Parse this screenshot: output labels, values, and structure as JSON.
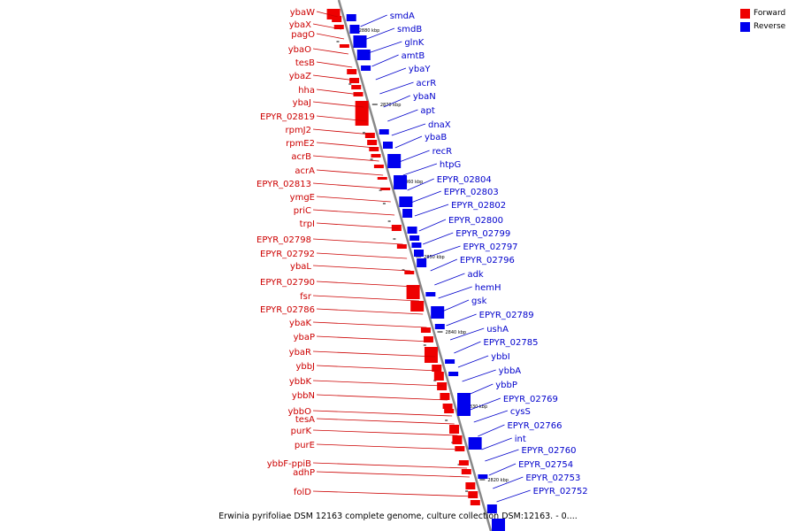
{
  "legend": {
    "forward_label": "Forward",
    "reverse_label": "Reverse",
    "forward_color": "#ee0000",
    "reverse_color": "#0000ee"
  },
  "caption": "Erwinia pyrifoliae DSM 12163 complete genome, culture collection DSM:12163. - 0....",
  "kbp_ticks": [
    "2880 kbp",
    "2870 kbp",
    "2860 kbp",
    "2850 kbp",
    "2840 kbp",
    "2830 kbp",
    "2820 kbp"
  ],
  "forward_genes": [
    "ybaW",
    "ybaX",
    "pagO",
    "ybaO",
    "tesB",
    "ybaZ",
    "hha",
    "ybaJ",
    "EPYR_02819",
    "rpmJ2",
    "rpmE2",
    "acrB",
    "acrA",
    "EPYR_02813",
    "ymgE",
    "priC",
    "trpI",
    "EPYR_02798",
    "EPYR_02792",
    "ybaL",
    "EPYR_02790",
    "fsr",
    "EPYR_02786",
    "ybaK",
    "ybaP",
    "ybaR",
    "ybbJ",
    "ybbK",
    "ybbN",
    "ybbO",
    "tesA",
    "purK",
    "purE",
    "ybbF-ppiB",
    "adhP",
    "folD"
  ],
  "reverse_genes": [
    "smdA",
    "smdB",
    "glnK",
    "amtB",
    "ybaY",
    "acrR",
    "ybaN",
    "apt",
    "dnaX",
    "ybaB",
    "recR",
    "htpG",
    "EPYR_02804",
    "EPYR_02803",
    "EPYR_02802",
    "EPYR_02800",
    "EPYR_02799",
    "EPYR_02797",
    "EPYR_02796",
    "adk",
    "hemH",
    "gsk",
    "EPYR_02789",
    "ushA",
    "EPYR_02785",
    "ybbI",
    "ybbA",
    "ybbP",
    "EPYR_02769",
    "cysS",
    "EPYR_02766",
    "int",
    "EPYR_02760",
    "EPYR_02754",
    "EPYR_02753",
    "EPYR_02752"
  ]
}
